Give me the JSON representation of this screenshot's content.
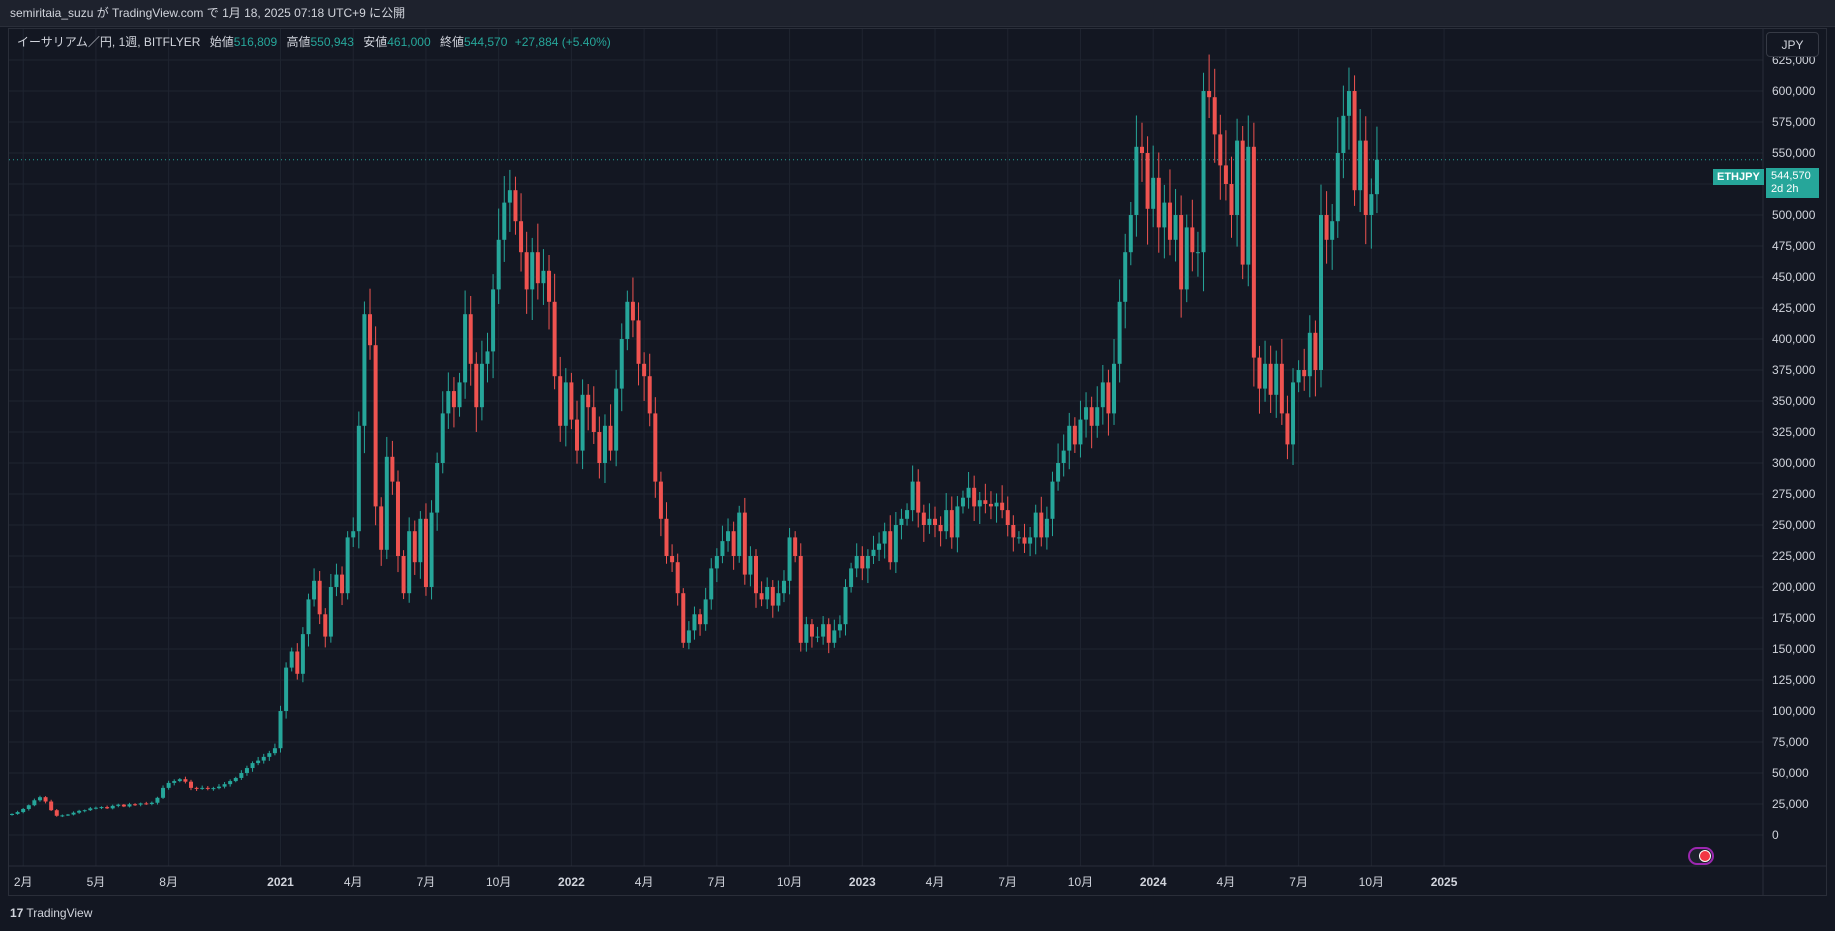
{
  "header": {
    "published_text": "semiritaia_suzu が TradingView.com で 1月 18, 2025 07:18 UTC+9 に公開"
  },
  "legend": {
    "symbol_text": "イーサリアム／円, 1週, BITFLYER",
    "open_label": "始値",
    "open_value": "516,809",
    "high_label": "高値",
    "high_value": "550,943",
    "low_label": "安値",
    "low_value": "461,000",
    "close_label": "終値",
    "close_value": "544,570",
    "change_text": "+27,884 (+5.40%)"
  },
  "currency_button": "JPY",
  "price_tag": {
    "symbol": "ETHJPY",
    "price": "544,570",
    "countdown": "2d 2h"
  },
  "footer": {
    "brand": "TradingView",
    "logo_glyph": "17"
  },
  "colors": {
    "up": "#26a69a",
    "down": "#ef5350",
    "background": "#131722",
    "grid": "#1f2430",
    "text": "#d1d4dc"
  },
  "chart_data": {
    "type": "candlestick",
    "title": "",
    "xlabel": "",
    "ylabel": "",
    "ylim": [
      -25000,
      650000
    ],
    "grid": true,
    "y_ticks": [
      0,
      25000,
      50000,
      75000,
      100000,
      125000,
      150000,
      175000,
      200000,
      225000,
      250000,
      275000,
      300000,
      325000,
      350000,
      375000,
      400000,
      425000,
      450000,
      475000,
      500000,
      525000,
      550000,
      575000,
      600000,
      625000
    ],
    "y_tick_labels": [
      "0",
      "25,000",
      "50,000",
      "75,000",
      "100,000",
      "125,000",
      "150,000",
      "175,000",
      "200,000",
      "225,000",
      "250,000",
      "275,000",
      "300,000",
      "325,000",
      "350,000",
      "375,000",
      "400,000",
      "425,000",
      "450,000",
      "475,000",
      "500,000",
      "525,000",
      "550,000",
      "575,000",
      "600,000",
      "625,000"
    ],
    "x_ticks": [
      {
        "label": "2月",
        "index": 2,
        "bold": false
      },
      {
        "label": "5月",
        "index": 15,
        "bold": false
      },
      {
        "label": "8月",
        "index": 28,
        "bold": false
      },
      {
        "label": "2021",
        "index": 48,
        "bold": true
      },
      {
        "label": "4月",
        "index": 61,
        "bold": false
      },
      {
        "label": "7月",
        "index": 74,
        "bold": false
      },
      {
        "label": "10月",
        "index": 87,
        "bold": false
      },
      {
        "label": "2022",
        "index": 100,
        "bold": true
      },
      {
        "label": "4月",
        "index": 113,
        "bold": false
      },
      {
        "label": "7月",
        "index": 126,
        "bold": false
      },
      {
        "label": "10月",
        "index": 139,
        "bold": false
      },
      {
        "label": "2023",
        "index": 152,
        "bold": true
      },
      {
        "label": "4月",
        "index": 165,
        "bold": false
      },
      {
        "label": "7月",
        "index": 178,
        "bold": false
      },
      {
        "label": "10月",
        "index": 191,
        "bold": false
      },
      {
        "label": "2024",
        "index": 204,
        "bold": true
      },
      {
        "label": "4月",
        "index": 217,
        "bold": false
      },
      {
        "label": "7月",
        "index": 230,
        "bold": false
      },
      {
        "label": "10月",
        "index": 243,
        "bold": false
      },
      {
        "label": "2025",
        "index": 256,
        "bold": true
      }
    ],
    "last_price": 544570,
    "close_series": [
      17000,
      18500,
      21000,
      24000,
      28000,
      30500,
      27000,
      20000,
      15500,
      15800,
      16500,
      18000,
      19500,
      20000,
      21500,
      22000,
      22500,
      21500,
      23500,
      24500,
      23000,
      24800,
      24500,
      25500,
      25000,
      26000,
      30000,
      38000,
      42000,
      43500,
      45000,
      43000,
      38000,
      37500,
      38000,
      37500,
      37800,
      39000,
      41000,
      43500,
      46000,
      50000,
      54000,
      58000,
      60000,
      63000,
      66000,
      70000,
      100000,
      135000,
      148000,
      130000,
      162000,
      190000,
      205000,
      178000,
      160000,
      200000,
      210000,
      195000,
      240000,
      245000,
      330000,
      420000,
      395000,
      265000,
      230000,
      305000,
      285000,
      225000,
      195000,
      245000,
      220000,
      255000,
      200000,
      260000,
      300000,
      340000,
      358000,
      345000,
      365000,
      420000,
      380000,
      345000,
      380000,
      390000,
      440000,
      480000,
      510000,
      520000,
      495000,
      470000,
      440000,
      470000,
      445000,
      455000,
      430000,
      370000,
      330000,
      365000,
      335000,
      310000,
      355000,
      345000,
      325000,
      300000,
      330000,
      310000,
      360000,
      400000,
      430000,
      415000,
      380000,
      370000,
      340000,
      285000,
      255000,
      225000,
      220000,
      195000,
      155000,
      165000,
      178000,
      170000,
      190000,
      215000,
      225000,
      237000,
      245000,
      225000,
      260000,
      210000,
      225000,
      195000,
      190000,
      200000,
      185000,
      195000,
      205000,
      240000,
      225000,
      155000,
      170000,
      160000,
      160000,
      170000,
      155000,
      165000,
      170000,
      200000,
      215000,
      225000,
      215000,
      225000,
      230000,
      235000,
      245000,
      220000,
      250000,
      255000,
      262000,
      285000,
      260000,
      250000,
      255000,
      250000,
      245000,
      262000,
      240000,
      265000,
      272000,
      280000,
      265000,
      270000,
      267000,
      265000,
      268000,
      262000,
      250000,
      240000,
      240000,
      235000,
      240000,
      260000,
      240000,
      255000,
      285000,
      300000,
      310000,
      330000,
      315000,
      335000,
      345000,
      330000,
      345000,
      365000,
      340000,
      380000,
      430000,
      470000,
      500000,
      555000,
      550000,
      505000,
      530000,
      490000,
      510000,
      480000,
      500000,
      440000,
      490000,
      470000,
      470000,
      600000,
      595000,
      565000,
      540000,
      525000,
      500000,
      560000,
      460000,
      555000,
      385000,
      360000,
      380000,
      355000,
      380000,
      340000,
      315000,
      365000,
      375000,
      370000,
      405000,
      375000,
      500000,
      480000,
      495000,
      550000,
      580000,
      600000,
      520000,
      560000,
      500000,
      516809,
      544570
    ],
    "axis_scale": "linear"
  }
}
